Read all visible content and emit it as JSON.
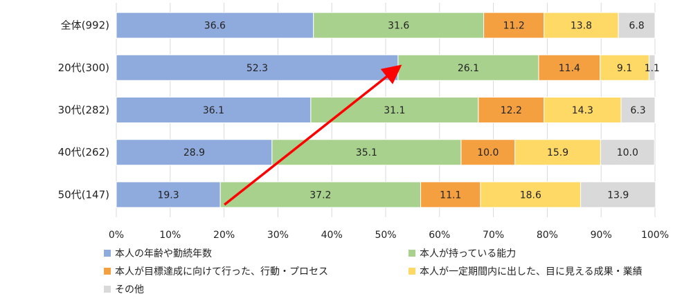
{
  "chart_data": {
    "type": "bar",
    "orientation": "horizontal",
    "stacked": true,
    "percent": true,
    "categories": [
      "全体(992)",
      "20代(300)",
      "30代(282)",
      "40代(262)",
      "50代(147)"
    ],
    "series": [
      {
        "name": "本人の年齢や勤続年数",
        "color": "#8FAADC",
        "values": [
          36.6,
          52.3,
          36.1,
          28.9,
          19.3
        ]
      },
      {
        "name": "本人が持っている能力",
        "color": "#A9D18E",
        "values": [
          31.6,
          26.1,
          31.1,
          35.1,
          37.2
        ]
      },
      {
        "name": "本人が目標達成に向けて行った、行動・プロセス",
        "color": "#F4A041",
        "values": [
          11.2,
          11.4,
          12.2,
          10.0,
          11.1
        ]
      },
      {
        "name": "本人が一定期間内に出した、目に見える成果・業績",
        "color": "#FFD966",
        "values": [
          13.8,
          9.1,
          14.3,
          15.9,
          18.6
        ]
      },
      {
        "name": "その他",
        "color": "#D9D9D9",
        "values": [
          6.8,
          1.1,
          6.3,
          10.0,
          13.9
        ]
      }
    ],
    "data_labels": [
      [
        "36.6",
        "31.6",
        "11.2",
        "13.8",
        "6.8"
      ],
      [
        "52.3",
        "26.1",
        "11.4",
        "9.1",
        "1.1"
      ],
      [
        "36.1",
        "31.1",
        "12.2",
        "14.3",
        "6.3"
      ],
      [
        "28.9",
        "35.1",
        "10.0",
        "15.9",
        "10.0"
      ],
      [
        "19.3",
        "37.2",
        "11.1",
        "18.6",
        "13.9"
      ]
    ],
    "x_ticks": [
      "0%",
      "10%",
      "20%",
      "30%",
      "40%",
      "50%",
      "60%",
      "70%",
      "80%",
      "90%",
      "100%"
    ],
    "xlim": [
      0,
      100
    ],
    "grid": true,
    "legend_position": "bottom",
    "arrow": {
      "color": "#FF0000",
      "from": {
        "category": "50代(147)",
        "x": 19.3
      },
      "to": {
        "category": "20代(300)",
        "x": 52.3
      }
    }
  }
}
